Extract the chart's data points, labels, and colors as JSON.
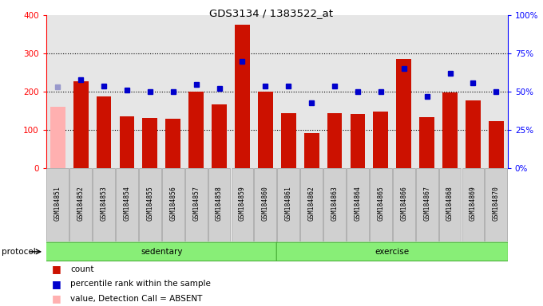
{
  "title": "GDS3134 / 1383522_at",
  "samples": [
    "GSM184851",
    "GSM184852",
    "GSM184853",
    "GSM184854",
    "GSM184855",
    "GSM184856",
    "GSM184857",
    "GSM184858",
    "GSM184859",
    "GSM184860",
    "GSM184861",
    "GSM184862",
    "GSM184863",
    "GSM184864",
    "GSM184865",
    "GSM184866",
    "GSM184867",
    "GSM184868",
    "GSM184869",
    "GSM184870"
  ],
  "count_values": [
    160,
    228,
    188,
    135,
    132,
    130,
    200,
    168,
    375,
    200,
    145,
    93,
    145,
    143,
    148,
    285,
    133,
    198,
    178,
    123
  ],
  "percentile_values": [
    53,
    58,
    54,
    51,
    50,
    50,
    55,
    52,
    70,
    54,
    54,
    43,
    54,
    50,
    50,
    65,
    47,
    62,
    56,
    50
  ],
  "absent_flags": [
    true,
    false,
    false,
    false,
    false,
    false,
    false,
    false,
    false,
    false,
    false,
    false,
    false,
    false,
    false,
    false,
    false,
    false,
    false,
    false
  ],
  "absent_rank_flags": [
    true,
    false,
    false,
    false,
    false,
    false,
    false,
    false,
    false,
    false,
    false,
    false,
    false,
    false,
    false,
    false,
    false,
    false,
    false,
    false
  ],
  "sedentary_count": 10,
  "group_labels": [
    "sedentary",
    "exercise"
  ],
  "bar_color_normal": "#cc1100",
  "bar_color_absent": "#ffb0b0",
  "dot_color_normal": "#0000cc",
  "dot_color_absent": "#9999cc",
  "left_ylim": [
    0,
    400
  ],
  "right_ylim": [
    0,
    100
  ],
  "left_yticks": [
    0,
    100,
    200,
    300,
    400
  ],
  "right_yticks": [
    0,
    25,
    50,
    75,
    100
  ],
  "right_yticklabels": [
    "0%",
    "25%",
    "50%",
    "75%",
    "100%"
  ],
  "col_bg_color": "#c8c8c8",
  "group_bg_color": "#88ee77",
  "group_bg_edge": "#44aa33"
}
